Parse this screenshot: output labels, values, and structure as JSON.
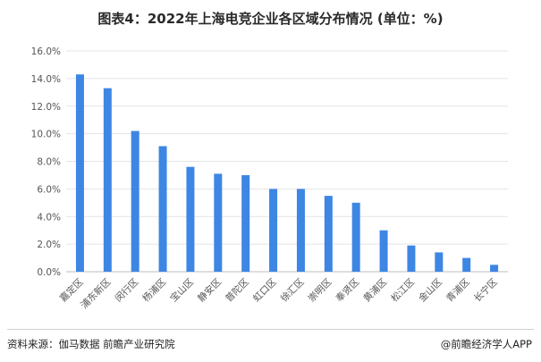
{
  "title": "图表4：2022年上海电竞企业各区域分布情况 (单位：%)",
  "chart_data": {
    "type": "bar",
    "categories": [
      "嘉定区",
      "浦东新区",
      "闵行区",
      "杨浦区",
      "宝山区",
      "静安区",
      "普陀区",
      "虹口区",
      "徐汇区",
      "崇明区",
      "奉贤区",
      "黄浦区",
      "松江区",
      "金山区",
      "青浦区",
      "长宁区"
    ],
    "values": [
      14.3,
      13.3,
      10.2,
      9.1,
      7.6,
      7.1,
      7.0,
      6.0,
      6.0,
      5.5,
      5.0,
      3.0,
      1.9,
      1.4,
      1.0,
      0.5
    ],
    "ylim": [
      0,
      16
    ],
    "yticks": [
      "0.0%",
      "2.0%",
      "4.0%",
      "6.0%",
      "8.0%",
      "10.0%",
      "12.0%",
      "14.0%",
      "16.0%"
    ],
    "xlabel": "",
    "ylabel": "",
    "grid": true,
    "bar_color": "#3d86e4"
  },
  "footer": {
    "source": "资料来源：伽马数据 前瞻产业研究院",
    "credit": "@前瞻经济学人APP"
  }
}
